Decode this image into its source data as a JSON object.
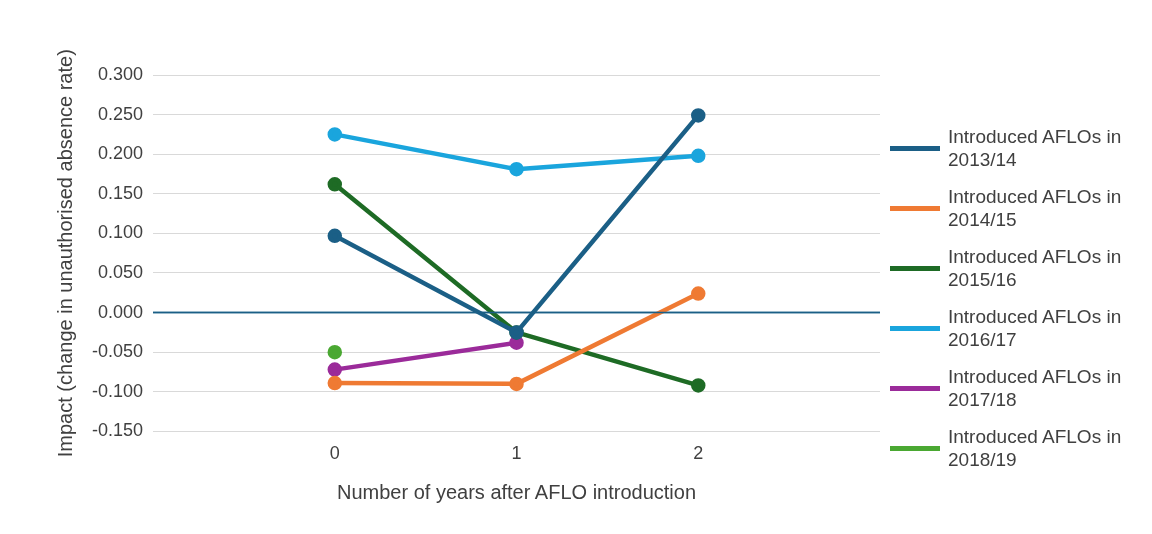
{
  "chart_data": {
    "type": "line",
    "xlabel": "Number of years after AFLO introduction",
    "ylabel": "Impact (change in unauthorised absence rate)",
    "x": [
      0,
      1,
      2
    ],
    "xlim": [
      -1,
      3
    ],
    "xticks": [
      0,
      1,
      2
    ],
    "ylim": [
      -0.15,
      0.3
    ],
    "yticks": [
      {
        "value": -0.15,
        "label": "-0.150"
      },
      {
        "value": -0.1,
        "label": "-0.100"
      },
      {
        "value": -0.05,
        "label": "-0.050"
      },
      {
        "value": 0,
        "label": "0.000"
      },
      {
        "value": 0.05,
        "label": "0.050"
      },
      {
        "value": 0.1,
        "label": "0.100"
      },
      {
        "value": 0.15,
        "label": "0.150"
      },
      {
        "value": 0.2,
        "label": "0.200"
      },
      {
        "value": 0.25,
        "label": "0.250"
      },
      {
        "value": 0.3,
        "label": "0.300"
      }
    ],
    "grid": "y",
    "legend": "right",
    "ref_lines": [
      {
        "axis": "y",
        "value": 0,
        "color": "#1b5f86"
      }
    ],
    "marker": "circle",
    "line_style": "solid",
    "series": [
      {
        "name": "Introduced AFLOs in 2013/14",
        "color": "#1b5f86",
        "values": [
          0.097,
          -0.025,
          0.249
        ]
      },
      {
        "name": "Introduced AFLOs in 2014/15",
        "color": "#ef7a33",
        "values": [
          -0.089,
          -0.09,
          0.024
        ]
      },
      {
        "name": "Introduced AFLOs in 2015/16",
        "color": "#1e6b25",
        "values": [
          0.162,
          -0.025,
          -0.092
        ]
      },
      {
        "name": "Introduced AFLOs in 2016/17",
        "color": "#1aa5dd",
        "values": [
          0.225,
          0.181,
          0.198
        ]
      },
      {
        "name": "Introduced AFLOs in 2017/18",
        "color": "#9b2b9a",
        "values": [
          -0.072,
          -0.038,
          null
        ]
      },
      {
        "name": "Introduced AFLOs in 2018/19",
        "color": "#4aa832",
        "values": [
          -0.05,
          null,
          null
        ]
      }
    ]
  }
}
